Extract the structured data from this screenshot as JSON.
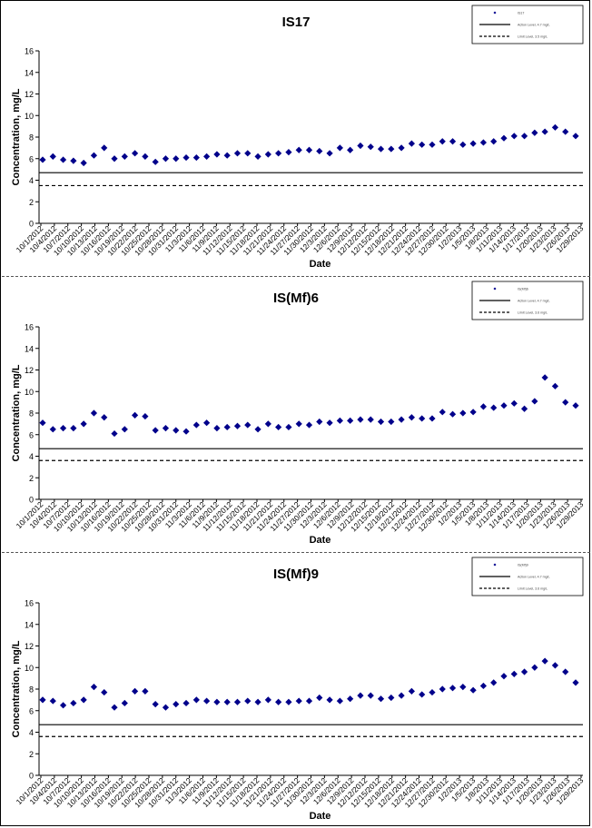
{
  "chart_data": [
    {
      "type": "scatter",
      "title": "IS17",
      "xlabel": "Date",
      "ylabel": "Concentration, mg/L",
      "ylim": [
        0,
        16
      ],
      "yticks": [
        "0",
        "2",
        "4",
        "6",
        "8",
        "10",
        "12",
        "14",
        "16"
      ],
      "xticks": [
        "10/1/2012",
        "10/4/2012",
        "10/7/2012",
        "10/10/2012",
        "10/13/2012",
        "10/16/2012",
        "10/19/2012",
        "10/22/2012",
        "10/25/2012",
        "10/28/2012",
        "10/31/2012",
        "11/3/2012",
        "11/6/2012",
        "11/9/2012",
        "11/12/2012",
        "11/15/2012",
        "11/18/2012",
        "11/21/2012",
        "11/24/2012",
        "11/27/2012",
        "11/30/2012",
        "12/3/2012",
        "12/6/2012",
        "12/9/2012",
        "12/12/2012",
        "12/15/2012",
        "12/18/2012",
        "12/21/2012",
        "12/24/2012",
        "12/27/2012",
        "12/30/2012",
        "1/2/2013",
        "1/5/2013",
        "1/8/2013",
        "1/11/2013",
        "1/14/2013",
        "1/17/2013",
        "1/20/2013",
        "1/23/2013",
        "1/26/2013",
        "1/29/2013"
      ],
      "grid": false,
      "legend_position": "top-right",
      "legend": [
        "IS17",
        "Action Level, 4.7 mg/L",
        "Limit Level, 3.5 mg/L"
      ],
      "series": [
        {
          "name": "IS17",
          "marker": "diamond",
          "color": "#00008b",
          "values": [
            5.9,
            6.2,
            5.9,
            5.8,
            5.6,
            6.3,
            7.0,
            6.0,
            6.2,
            6.5,
            6.2,
            5.7,
            6.0,
            6.0,
            6.1,
            6.1,
            6.2,
            6.4,
            6.3,
            6.5,
            6.5,
            6.2,
            6.4,
            6.5,
            6.6,
            6.8,
            6.8,
            6.7,
            6.5,
            7.0,
            6.8,
            7.2,
            7.1,
            6.9,
            6.9,
            7.0,
            7.4,
            7.3,
            7.3,
            7.6,
            7.6,
            7.3,
            7.4,
            7.5,
            7.6,
            7.9,
            8.1,
            8.1,
            8.4,
            8.5,
            8.9,
            8.5,
            8.1
          ]
        },
        {
          "name": "Action Level, 4.7 mg/L",
          "style": "solid",
          "color": "#000000",
          "value": 4.7
        },
        {
          "name": "Limit Level, 3.5 mg/L",
          "style": "dashed",
          "color": "#000000",
          "value": 3.5
        }
      ]
    },
    {
      "type": "scatter",
      "title": "IS(Mf)6",
      "xlabel": "Date",
      "ylabel": "Concentration, mg/L",
      "ylim": [
        0,
        16
      ],
      "yticks": [
        "0",
        "2",
        "4",
        "6",
        "8",
        "10",
        "12",
        "14",
        "16"
      ],
      "xticks": [
        "10/1/2012",
        "10/4/2012",
        "10/7/2012",
        "10/10/2012",
        "10/13/2012",
        "10/16/2012",
        "10/19/2012",
        "10/22/2012",
        "10/25/2012",
        "10/28/2012",
        "10/31/2012",
        "11/3/2012",
        "11/6/2012",
        "11/9/2012",
        "11/12/2012",
        "11/15/2012",
        "11/18/2012",
        "11/21/2012",
        "11/24/2012",
        "11/27/2012",
        "11/30/2012",
        "12/3/2012",
        "12/6/2012",
        "12/9/2012",
        "12/12/2012",
        "12/15/2012",
        "12/18/2012",
        "12/21/2012",
        "12/24/2012",
        "12/27/2012",
        "12/30/2012",
        "1/2/2013",
        "1/5/2013",
        "1/8/2013",
        "1/11/2013",
        "1/14/2013",
        "1/17/2013",
        "1/20/2013",
        "1/23/2013",
        "1/26/2013",
        "1/29/2013"
      ],
      "grid": false,
      "legend_position": "top-right",
      "legend": [
        "IS(Mf)6",
        "Action Level, 4.7 mg/L",
        "Limit Level, 3.6 mg/L"
      ],
      "series": [
        {
          "name": "IS(Mf)6",
          "marker": "diamond",
          "color": "#00008b",
          "values": [
            7.1,
            6.5,
            6.6,
            6.6,
            7.0,
            8.0,
            7.6,
            6.1,
            6.5,
            7.8,
            7.7,
            6.4,
            6.6,
            6.4,
            6.3,
            6.9,
            7.1,
            6.6,
            6.7,
            6.8,
            6.9,
            6.5,
            7.0,
            6.7,
            6.7,
            7.0,
            6.9,
            7.2,
            7.1,
            7.3,
            7.3,
            7.4,
            7.4,
            7.2,
            7.2,
            7.4,
            7.6,
            7.5,
            7.5,
            8.1,
            7.9,
            8.0,
            8.1,
            8.6,
            8.5,
            8.7,
            8.9,
            8.4,
            9.1,
            11.3,
            10.5,
            9.0,
            8.7
          ]
        },
        {
          "name": "Action Level, 4.7 mg/L",
          "style": "solid",
          "color": "#000000",
          "value": 4.7
        },
        {
          "name": "Limit Level, 3.6 mg/L",
          "style": "dashed",
          "color": "#000000",
          "value": 3.6
        }
      ]
    },
    {
      "type": "scatter",
      "title": "IS(Mf)9",
      "xlabel": "Date",
      "ylabel": "Concentration, mg/L",
      "ylim": [
        0,
        16
      ],
      "yticks": [
        "0",
        "2",
        "4",
        "6",
        "8",
        "10",
        "12",
        "14",
        "16"
      ],
      "xticks": [
        "10/1/2012",
        "10/4/2012",
        "10/7/2012",
        "10/10/2012",
        "10/13/2012",
        "10/16/2012",
        "10/19/2012",
        "10/22/2012",
        "10/25/2012",
        "10/28/2012",
        "10/31/2012",
        "11/3/2012",
        "11/6/2012",
        "11/9/2012",
        "11/12/2012",
        "11/15/2012",
        "11/18/2012",
        "11/21/2012",
        "11/24/2012",
        "11/27/2012",
        "11/30/2012",
        "12/3/2012",
        "12/6/2012",
        "12/9/2012",
        "12/12/2012",
        "12/15/2012",
        "12/18/2012",
        "12/21/2012",
        "12/24/2012",
        "12/27/2012",
        "12/30/2012",
        "1/2/2013",
        "1/5/2013",
        "1/8/2013",
        "1/11/2013",
        "1/14/2013",
        "1/17/2013",
        "1/20/2013",
        "1/23/2013",
        "1/26/2013",
        "1/29/2013"
      ],
      "grid": false,
      "legend_position": "top-right",
      "legend": [
        "IS(Mf)9",
        "Action Level, 4.7 mg/L",
        "Limit Level, 3.6 mg/L"
      ],
      "series": [
        {
          "name": "IS(Mf)9",
          "marker": "diamond",
          "color": "#00008b",
          "values": [
            7.0,
            6.9,
            6.5,
            6.7,
            7.0,
            8.2,
            7.7,
            6.3,
            6.7,
            7.8,
            7.8,
            6.6,
            6.3,
            6.6,
            6.7,
            7.0,
            6.9,
            6.8,
            6.8,
            6.8,
            6.9,
            6.8,
            7.0,
            6.8,
            6.8,
            6.9,
            6.9,
            7.2,
            7.0,
            6.9,
            7.1,
            7.4,
            7.4,
            7.1,
            7.2,
            7.4,
            7.8,
            7.5,
            7.7,
            8.0,
            8.1,
            8.2,
            7.9,
            8.3,
            8.6,
            9.2,
            9.4,
            9.6,
            10.0,
            10.6,
            10.2,
            9.6,
            8.6
          ]
        },
        {
          "name": "Action Level, 4.7 mg/L",
          "style": "solid",
          "color": "#000000",
          "value": 4.7
        },
        {
          "name": "Limit Level, 3.6 mg/L",
          "style": "dashed",
          "color": "#000000",
          "value": 3.6
        }
      ]
    }
  ]
}
